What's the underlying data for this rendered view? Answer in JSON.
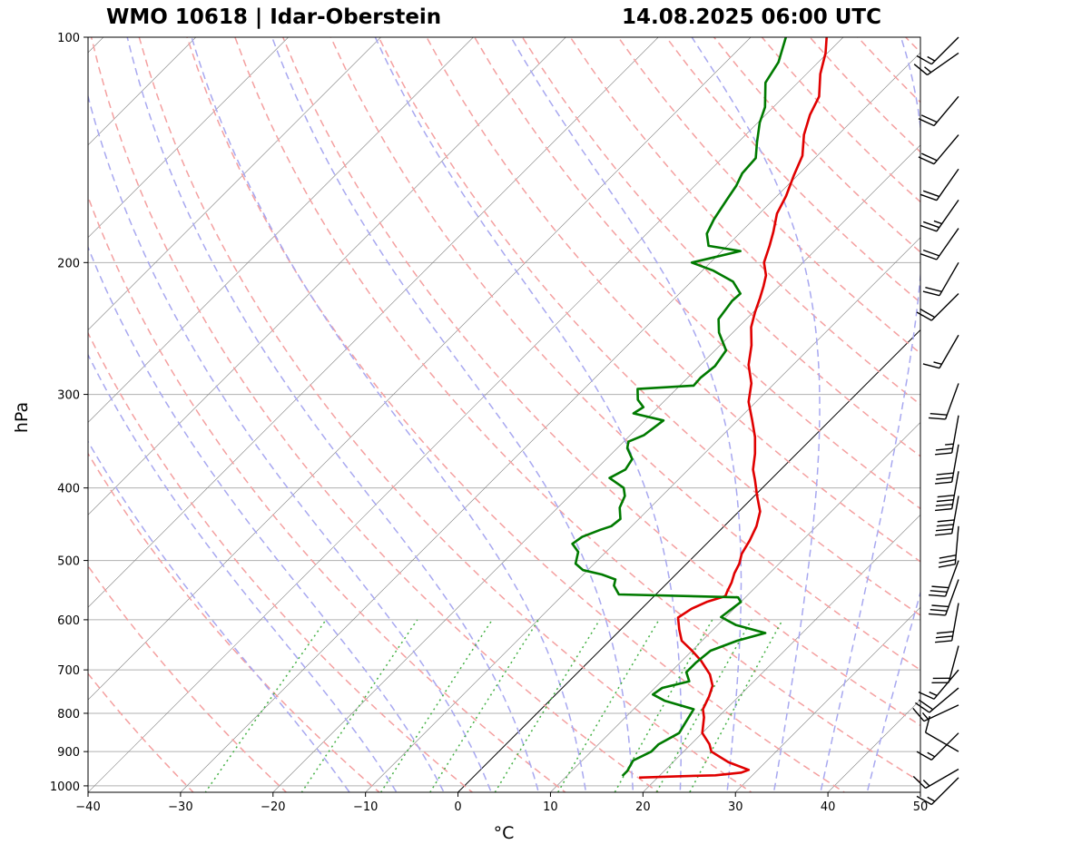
{
  "header": {
    "station": "WMO 10618 | Idar-Oberstein",
    "datetime": "14.08.2025 06:00 UTC"
  },
  "chart_data": {
    "type": "skew-t log-p",
    "title_left": "WMO 10618 | Idar-Oberstein",
    "title_right": "14.08.2025 06:00 UTC",
    "xlabel": "°C",
    "ylabel": "hPa",
    "xlim": [
      -40,
      50
    ],
    "ylim": [
      1020,
      100
    ],
    "x_ticks": [
      "−40",
      "−30",
      "−20",
      "−10",
      "0",
      "10",
      "20",
      "30",
      "40",
      "50"
    ],
    "y_ticks": [
      "100",
      "200",
      "300",
      "400",
      "500",
      "600",
      "700",
      "800",
      "900",
      "1000"
    ],
    "grid": true,
    "skew_degrees_per_decade": 76,
    "colors": {
      "temperature": "#e00000",
      "dewpoint": "#007a00",
      "dry_adiabats": "#f4a0a0",
      "moist_adiabats": "#a8a8f0",
      "mixing_ratio": "#44b044",
      "isotherms": "#808080",
      "zero_isotherm": "#000000"
    },
    "series": [
      {
        "key": "temperature",
        "points": [
          [
            18,
            975
          ],
          [
            22,
            971
          ],
          [
            26,
            968
          ],
          [
            28.5,
            960
          ],
          [
            29,
            952
          ],
          [
            26,
            930
          ],
          [
            23,
            900
          ],
          [
            22,
            880
          ],
          [
            20,
            850
          ],
          [
            18.5,
            810
          ],
          [
            17.5,
            790
          ],
          [
            16.8,
            760
          ],
          [
            16,
            735
          ],
          [
            14.5,
            710
          ],
          [
            12,
            680
          ],
          [
            10,
            660
          ],
          [
            7.8,
            640
          ],
          [
            6.3,
            618
          ],
          [
            4.9,
            596
          ],
          [
            5.4,
            580
          ],
          [
            6.3,
            568
          ],
          [
            7.7,
            558
          ],
          [
            7.4,
            550
          ],
          [
            6.9,
            535
          ],
          [
            6.2,
            520
          ],
          [
            5.7,
            505
          ],
          [
            4.9,
            490
          ],
          [
            4.3,
            470
          ],
          [
            3.5,
            450
          ],
          [
            2.3,
            430
          ],
          [
            0.3,
            410
          ],
          [
            -1.7,
            390
          ],
          [
            -3,
            378
          ],
          [
            -4.5,
            360
          ],
          [
            -6.3,
            342
          ],
          [
            -8.4,
            325
          ],
          [
            -10.8,
            307
          ],
          [
            -12.5,
            290
          ],
          [
            -14.8,
            274
          ],
          [
            -16.6,
            258
          ],
          [
            -18.6,
            244
          ],
          [
            -19.8,
            233
          ],
          [
            -20.8,
            223
          ],
          [
            -21.7,
            215
          ],
          [
            -22.6,
            208
          ],
          [
            -24.2,
            200
          ],
          [
            -25.4,
            190
          ],
          [
            -26.5,
            182
          ],
          [
            -28.1,
            172
          ],
          [
            -29,
            163
          ],
          [
            -30.4,
            153
          ],
          [
            -31.6,
            144
          ],
          [
            -33.7,
            135
          ],
          [
            -35.2,
            127
          ],
          [
            -36.2,
            120
          ],
          [
            -38.5,
            112
          ],
          [
            -40.2,
            105
          ],
          [
            -41.8,
            100
          ]
        ]
      },
      {
        "key": "dewpoint",
        "points": [
          [
            16,
            970
          ],
          [
            16,
            955
          ],
          [
            15.5,
            925
          ],
          [
            16.5,
            900
          ],
          [
            16.5,
            880
          ],
          [
            17.5,
            850
          ],
          [
            17,
            820
          ],
          [
            16.5,
            790
          ],
          [
            12.5,
            770
          ],
          [
            10.5,
            755
          ],
          [
            10.8,
            740
          ],
          [
            13,
            725
          ],
          [
            11.7,
            705
          ],
          [
            11.7,
            685
          ],
          [
            12,
            660
          ],
          [
            13.8,
            640
          ],
          [
            16,
            625
          ],
          [
            12,
            610
          ],
          [
            9.5,
            595
          ],
          [
            10,
            568
          ],
          [
            9.2,
            560
          ],
          [
            -4,
            555
          ],
          [
            -5.5,
            540
          ],
          [
            -6,
            530
          ],
          [
            -8,
            522
          ],
          [
            -10.5,
            515
          ],
          [
            -12,
            505
          ],
          [
            -13,
            487
          ],
          [
            -14.5,
            475
          ],
          [
            -14.2,
            465
          ],
          [
            -13,
            455
          ],
          [
            -12.2,
            450
          ],
          [
            -12,
            440
          ],
          [
            -13.3,
            425
          ],
          [
            -14,
            410
          ],
          [
            -15,
            400
          ],
          [
            -17.6,
            388
          ],
          [
            -16.8,
            378
          ],
          [
            -17.2,
            366
          ],
          [
            -18.9,
            354
          ],
          [
            -19.5,
            347
          ],
          [
            -18.5,
            340
          ],
          [
            -18,
            325
          ],
          [
            -22,
            318
          ],
          [
            -21.6,
            312
          ],
          [
            -23,
            305
          ],
          [
            -24.2,
            295
          ],
          [
            -18.5,
            292
          ],
          [
            -18.6,
            285
          ],
          [
            -18.3,
            275
          ],
          [
            -18.8,
            262
          ],
          [
            -21.5,
            248
          ],
          [
            -23,
            238
          ],
          [
            -23.5,
            225
          ],
          [
            -23.4,
            220
          ],
          [
            -25.5,
            212
          ],
          [
            -28.8,
            205
          ],
          [
            -32,
            200
          ],
          [
            -28,
            193
          ],
          [
            -32,
            190
          ],
          [
            -33.5,
            183
          ],
          [
            -34.3,
            175
          ],
          [
            -35,
            165
          ],
          [
            -35.5,
            158
          ],
          [
            -36.2,
            152
          ],
          [
            -36.4,
            145
          ],
          [
            -38,
            138
          ],
          [
            -39.8,
            130
          ],
          [
            -40.9,
            124
          ],
          [
            -43.5,
            115
          ],
          [
            -44.3,
            108
          ],
          [
            -46.2,
            100
          ]
        ]
      }
    ],
    "wind_profile": [
      {
        "p": 975,
        "dir": 225,
        "speed_kt": 15
      },
      {
        "p": 950,
        "dir": 240,
        "speed_kt": 15
      },
      {
        "p": 900,
        "dir": 300,
        "speed_kt": 10
      },
      {
        "p": 850,
        "dir": 225,
        "speed_kt": 15
      },
      {
        "p": 780,
        "dir": 245,
        "speed_kt": 15
      },
      {
        "p": 740,
        "dir": 230,
        "speed_kt": 20
      },
      {
        "p": 700,
        "dir": 220,
        "speed_kt": 15
      },
      {
        "p": 650,
        "dir": 195,
        "speed_kt": 20
      },
      {
        "p": 570,
        "dir": 190,
        "speed_kt": 30
      },
      {
        "p": 530,
        "dir": 200,
        "speed_kt": 30
      },
      {
        "p": 500,
        "dir": 200,
        "speed_kt": 30
      },
      {
        "p": 450,
        "dir": 185,
        "speed_kt": 30
      },
      {
        "p": 410,
        "dir": 190,
        "speed_kt": 40
      },
      {
        "p": 380,
        "dir": 190,
        "speed_kt": 40
      },
      {
        "p": 350,
        "dir": 190,
        "speed_kt": 30
      },
      {
        "p": 320,
        "dir": 190,
        "speed_kt": 25
      },
      {
        "p": 290,
        "dir": 200,
        "speed_kt": 20
      },
      {
        "p": 250,
        "dir": 210,
        "speed_kt": 15
      },
      {
        "p": 220,
        "dir": 225,
        "speed_kt": 20
      },
      {
        "p": 200,
        "dir": 210,
        "speed_kt": 20
      },
      {
        "p": 180,
        "dir": 215,
        "speed_kt": 20
      },
      {
        "p": 165,
        "dir": 215,
        "speed_kt": 25
      },
      {
        "p": 150,
        "dir": 215,
        "speed_kt": 20
      },
      {
        "p": 135,
        "dir": 220,
        "speed_kt": 20
      },
      {
        "p": 120,
        "dir": 220,
        "speed_kt": 20
      },
      {
        "p": 105,
        "dir": 235,
        "speed_kt": 15
      },
      {
        "p": 100,
        "dir": 225,
        "speed_kt": 15
      }
    ]
  }
}
